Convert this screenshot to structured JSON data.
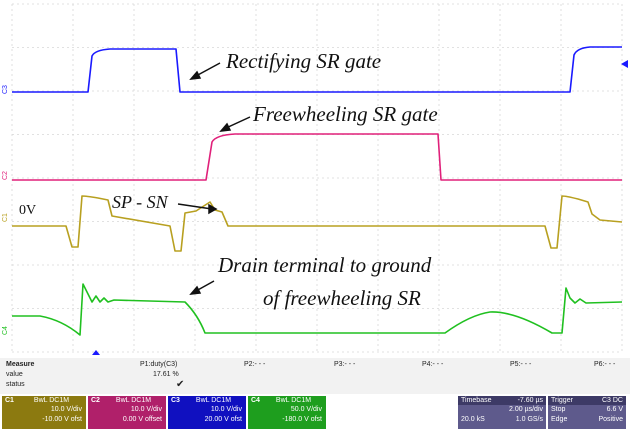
{
  "chart_data": {
    "type": "line",
    "annotations": {
      "rect_gate": "Rectifying SR gate",
      "fw_gate": "Freewheeling SR gate",
      "sp_sn": "SP - SN",
      "zero_v": "0V",
      "drain_line1": "Drain terminal to ground",
      "drain_line2": "of freewheeling SR"
    },
    "channels": [
      {
        "name": "C3",
        "color": "#1a1aff",
        "level_label": "C3"
      },
      {
        "name": "C2",
        "color": "#e0207a",
        "level_label": "C2"
      },
      {
        "name": "C1",
        "color": "#b8a020",
        "level_label": "C1"
      },
      {
        "name": "C4",
        "color": "#20c020",
        "level_label": "C4"
      }
    ],
    "grid": true
  },
  "measure": {
    "title": "Measure",
    "row_value": "value",
    "row_status": "status",
    "p1_label": "P1:duty(C3)",
    "p1_value": "17.61 %",
    "p1_status": "✔",
    "p2": "P2:- - -",
    "p3": "P3:- - -",
    "p4": "P4:- - -",
    "p5": "P5:- - -",
    "p6": "P6:- - -"
  },
  "channel_boxes": [
    {
      "name": "C1",
      "tag": "BwL DC1M",
      "vdiv": "10.0 V/div",
      "offset": "-10.00 V ofst",
      "color": "#8c7a10"
    },
    {
      "name": "C2",
      "tag": "BwL DC1M",
      "vdiv": "10.0 V/div",
      "offset": "0.00 V offset",
      "color": "#b0206a"
    },
    {
      "name": "C3",
      "tag": "BwL DC1M",
      "vdiv": "10.0 V/div",
      "offset": "20.00 V ofst",
      "color": "#1010c0"
    },
    {
      "name": "C4",
      "tag": "BwL DC1M",
      "vdiv": "50.0 V/div",
      "offset": "-180.0 V ofst",
      "color": "#1e9e1e"
    }
  ],
  "timebase": {
    "title": "Timebase",
    "delay": "-7.60 µs",
    "tdiv": "2.00 µs/div",
    "samples": "20.0 kS",
    "rate": "1.0 GS/s"
  },
  "trigger": {
    "title": "Trigger",
    "tag": "C3 DC",
    "mode": "Stop",
    "level": "6.6 V",
    "type": "Edge",
    "slope": "Positive"
  }
}
